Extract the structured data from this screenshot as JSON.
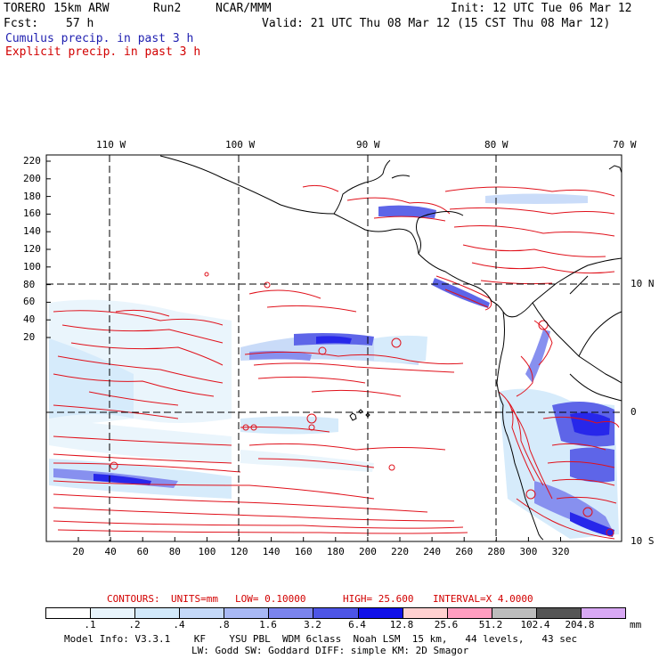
{
  "header": {
    "model": "TORERO",
    "resolution": "15km ARW",
    "run": "Run2",
    "org": "NCAR/MMM",
    "init": "Init: 12 UTC Tue 06 Mar 12",
    "fcst_label": "Fcst:",
    "fcst_value": "57 h",
    "valid": "Valid: 21 UTC Thu 08 Mar 12 (15 CST Thu 08 Mar 12)",
    "legend_cumulus": "Cumulus precip. in past 3 h",
    "legend_explicit": "Explicit precip. in past 3 h"
  },
  "map": {
    "lon_labels": [
      "110 W",
      "100 W",
      "90 W",
      "80 W",
      "70 W"
    ],
    "lat_labels": [
      "10 N",
      "0",
      "10 S"
    ],
    "y_ticks": [
      "220",
      "200",
      "180",
      "160",
      "140",
      "120",
      "100",
      "80",
      "60",
      "40",
      "20"
    ],
    "x_ticks": [
      "20",
      "40",
      "60",
      "80",
      "100",
      "120",
      "140",
      "160",
      "180",
      "200",
      "220",
      "240",
      "260",
      "280",
      "300",
      "320"
    ]
  },
  "contours": {
    "label": "CONTOURS:",
    "units": "UNITS=mm",
    "low": "LOW= 0.10000",
    "high": "HIGH= 25.600",
    "interval": "INTERVAL=X 4.0000"
  },
  "colorbar": {
    "colors": [
      "#ffffff",
      "#e8f4fc",
      "#d2e9fb",
      "#c4d8f8",
      "#a8b8f4",
      "#7b84ee",
      "#4d55e6",
      "#1010e8",
      "#ffd0d0",
      "#ff9ec0",
      "#bdbdbd",
      "#555555",
      "#d8a8f4"
    ],
    "labels": [
      ".1",
      ".2",
      ".4",
      ".8",
      "1.6",
      "3.2",
      "6.4",
      "12.8",
      "25.6",
      "51.2",
      "102.4",
      "204.8"
    ],
    "unit": "mm"
  },
  "footer": {
    "line1": "Model Info: V3.3.1    KF    YSU PBL  WDM 6class  Noah LSM  15 km,   44 levels,   43 sec",
    "line2": "LW: Godd SW: Goddard DIFF: simple KM: 2D Smagor"
  }
}
